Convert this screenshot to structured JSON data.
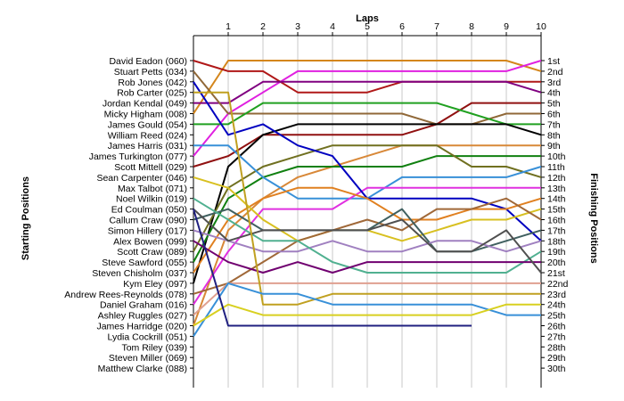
{
  "chart_data": {
    "type": "line",
    "title": "",
    "xlabel": "Laps",
    "ylabel_left": "Starting Positions",
    "ylabel_right": "Finishing Positions",
    "x": [
      0,
      1,
      2,
      3,
      4,
      5,
      6,
      7,
      8,
      9,
      10
    ],
    "lap_ticks": [
      "1",
      "2",
      "3",
      "4",
      "5",
      "6",
      "7",
      "8",
      "9",
      "10"
    ],
    "ylim": [
      1,
      30
    ],
    "starting_labels": [
      "David Eadon (060)",
      "Stuart Petts (034)",
      "Rob Jones (042)",
      "Rob Carter (025)",
      "Jordan Kendal (049)",
      "Micky Higham (008)",
      "James Gould (054)",
      "William Reed (024)",
      "James Harris (031)",
      "James Turkington (077)",
      "Scott Mittell (029)",
      "Sean Carpenter (046)",
      "Max Talbot (071)",
      "Noel Wilkin (019)",
      "Ed Coulman (050)",
      "Callum Craw (090)",
      "Simon Hillery (017)",
      "Alex Bowen (099)",
      "Scott Craw (089)",
      "Steve Sawford (055)",
      "Steven Chisholm (037)",
      "Kym Eley (097)",
      "Andrew Rees-Reynolds (078)",
      "Daniel Graham (016)",
      "Ashley Ruggles (027)",
      "James Harridge (020)",
      "Lydia Cockrill (051)",
      "Tom Riley (039)",
      "Steven Miller (069)",
      "Matthew Clarke (088)"
    ],
    "finishing_labels": [
      "1st",
      "2nd",
      "3rd",
      "4th",
      "5th",
      "6th",
      "7th",
      "8th",
      "9th",
      "10th",
      "11th",
      "12th",
      "13th",
      "14th",
      "15th",
      "16th",
      "17th",
      "18th",
      "19th",
      "20th",
      "21st",
      "22nd",
      "23rd",
      "24th",
      "25th",
      "26th",
      "27th",
      "28th",
      "29th",
      "30th"
    ],
    "series": [
      {
        "color": "#d4861c",
        "positions": [
          6,
          1,
          1,
          1,
          1,
          1,
          1,
          1,
          1,
          1,
          2
        ]
      },
      {
        "color": "#e020e0",
        "positions": [
          10,
          6,
          4,
          2,
          2,
          2,
          2,
          2,
          2,
          2,
          1
        ]
      },
      {
        "color": "#b01818",
        "positions": [
          1,
          2,
          2,
          4,
          4,
          4,
          3,
          3,
          3,
          3,
          3
        ]
      },
      {
        "color": "#800080",
        "positions": [
          5,
          5,
          3,
          3,
          3,
          3,
          3,
          3,
          3,
          3,
          4
        ]
      },
      {
        "color": "#901010",
        "positions": [
          11,
          10,
          8,
          8,
          8,
          8,
          8,
          7,
          5,
          5,
          5
        ]
      },
      {
        "color": "#906838",
        "positions": [
          2,
          6,
          6,
          6,
          6,
          6,
          6,
          7,
          7,
          6,
          6
        ]
      },
      {
        "color": "#20a020",
        "positions": [
          7,
          7,
          5,
          5,
          5,
          5,
          5,
          5,
          6,
          7,
          7
        ]
      },
      {
        "color": "#000000",
        "positions": [
          22,
          11,
          8,
          7,
          7,
          7,
          7,
          7,
          7,
          7,
          8
        ]
      },
      {
        "color": "#d88838",
        "positions": [
          26,
          17,
          14,
          12,
          11,
          10,
          9,
          9,
          9,
          9,
          9
        ]
      },
      {
        "color": "#108010",
        "positions": [
          20,
          14,
          12,
          11,
          11,
          11,
          11,
          10,
          10,
          10,
          10
        ]
      },
      {
        "color": "#707020",
        "positions": [
          19,
          13,
          11,
          10,
          9,
          9,
          9,
          9,
          11,
          11,
          12
        ]
      },
      {
        "color": "#3890d8",
        "positions": [
          9,
          9,
          12,
          14,
          14,
          14,
          12,
          12,
          12,
          12,
          11
        ]
      },
      {
        "color": "#e030e0",
        "positions": [
          24,
          19,
          15,
          15,
          15,
          13,
          13,
          13,
          13,
          13,
          13
        ]
      },
      {
        "color": "#0000c0",
        "positions": [
          3,
          8,
          7,
          9,
          10,
          14,
          14,
          14,
          14,
          15,
          18
        ]
      },
      {
        "color": "#e08020",
        "positions": [
          21,
          16,
          14,
          13,
          13,
          14,
          16,
          16,
          15,
          15,
          14
        ]
      },
      {
        "color": "#d8c020",
        "positions": [
          12,
          13,
          16,
          18,
          17,
          17,
          18,
          17,
          16,
          16,
          15
        ]
      },
      {
        "color": "#a06838",
        "positions": [
          23,
          22,
          20,
          18,
          17,
          16,
          17,
          15,
          15,
          14,
          16
        ]
      },
      {
        "color": "#406060",
        "positions": [
          16,
          15,
          17,
          17,
          17,
          17,
          15,
          19,
          19,
          18,
          17
        ]
      },
      {
        "color": "#a080c0",
        "positions": [
          17,
          18,
          19,
          19,
          18,
          19,
          19,
          18,
          18,
          19,
          18
        ]
      },
      {
        "color": "#50b090",
        "positions": [
          14,
          16,
          18,
          18,
          20,
          21,
          21,
          21,
          21,
          21,
          19
        ]
      },
      {
        "color": "#700070",
        "positions": [
          18,
          20,
          21,
          20,
          21,
          20,
          20,
          20,
          20,
          20,
          20
        ]
      },
      {
        "color": "#505050",
        "positions": [
          15,
          18,
          17,
          17,
          17,
          17,
          16,
          19,
          19,
          17,
          21
        ]
      },
      {
        "color": "#e0a090",
        "positions": [
          25,
          22,
          22,
          22,
          22,
          22,
          22,
          22,
          22,
          22,
          22
        ]
      },
      {
        "color": "#c0a020",
        "positions": [
          4,
          4,
          24,
          24,
          23,
          23,
          23,
          23,
          23,
          23,
          23
        ]
      },
      {
        "color": "#3890d8",
        "positions": [
          27,
          22,
          23,
          23,
          24,
          24,
          24,
          24,
          24,
          25,
          25
        ]
      },
      {
        "color": "#d8d020",
        "positions": [
          26,
          24,
          25,
          25,
          25,
          25,
          25,
          25,
          25,
          24,
          24
        ]
      },
      {
        "color": "#202080",
        "positions": [
          15,
          26,
          26,
          26,
          26,
          26,
          26,
          26,
          26,
          null,
          null
        ]
      }
    ]
  }
}
